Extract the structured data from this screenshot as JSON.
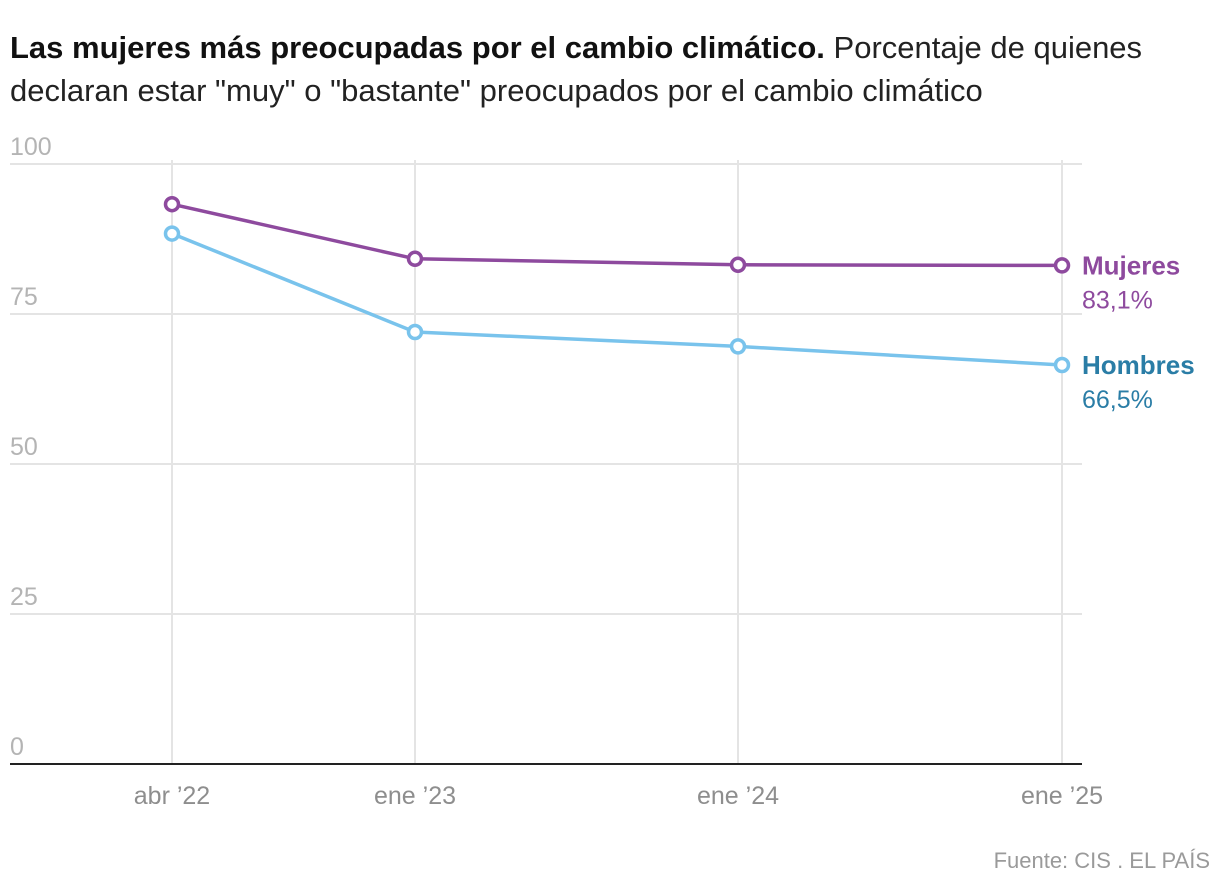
{
  "title": {
    "bold": "Las mujeres más preocupadas por el cambio climático.",
    "subtitle": "Porcentaje de quienes declaran estar \"muy\" o \"bastante\" preocupados por el cambio climático"
  },
  "source": "Fuente: CIS . EL PAÍS",
  "chart_data": {
    "type": "line",
    "title": "Las mujeres más preocupadas por el cambio climático.",
    "subtitle": "Porcentaje de quienes declaran estar \"muy\" o \"bastante\" preocupados por el cambio climático",
    "x": [
      "abr '22",
      "ene '23",
      "ene '24",
      "ene '25"
    ],
    "x_tick_labels": [
      "abr ’22",
      "ene ’23",
      "ene ’24",
      "ene ’25"
    ],
    "ylim": [
      0,
      100
    ],
    "y_ticks": [
      0,
      25,
      50,
      75,
      100
    ],
    "grid": true,
    "legend": "direct labels at line ends (right)",
    "series": [
      {
        "name": "Mujeres",
        "color": "#8e4a9e",
        "values": [
          93.3,
          84.2,
          83.2,
          83.1
        ],
        "end_label": "83,1%"
      },
      {
        "name": "Hombres",
        "color": "#79c3ec",
        "label_color": "#2a7da6",
        "values": [
          88.4,
          72.0,
          69.6,
          66.5
        ],
        "end_label": "66,5%"
      }
    ]
  }
}
